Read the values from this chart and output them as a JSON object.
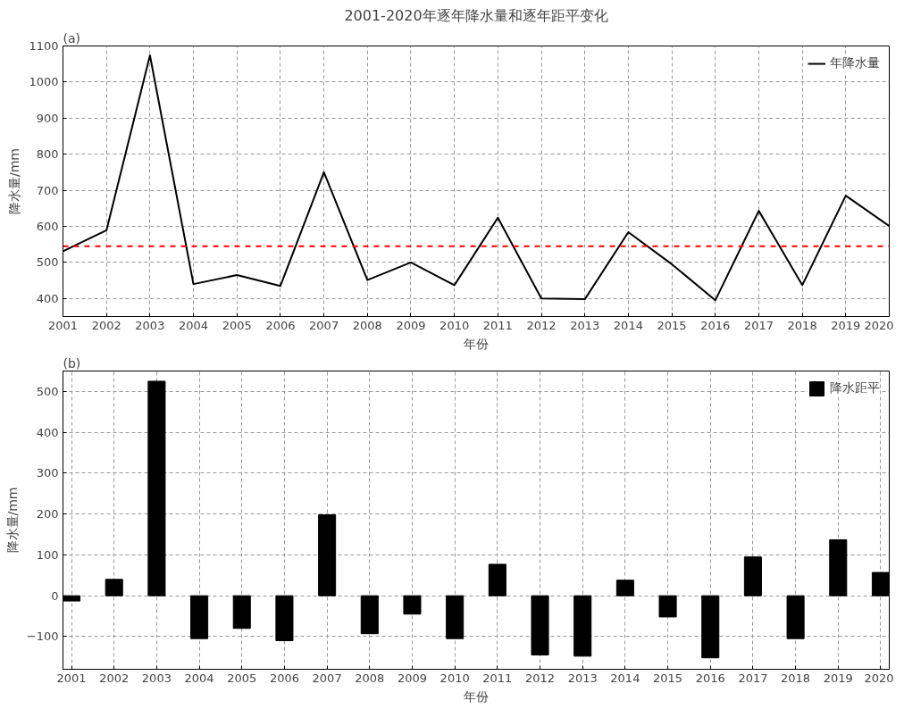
{
  "chart_data": [
    {
      "type": "line",
      "title": "2001-2020年逐年降水量和逐年距平变化",
      "xlabel": "年份",
      "ylabel": "降水量/mm",
      "annotations": [
        "(a)"
      ],
      "x": [
        2001,
        2002,
        2003,
        2004,
        2005,
        2006,
        2007,
        2008,
        2009,
        2010,
        2011,
        2012,
        2013,
        2014,
        2015,
        2016,
        2017,
        2018,
        2019,
        2020
      ],
      "series": [
        {
          "name": "年降水量",
          "color": "#000000",
          "values": [
            531,
            589,
            1074,
            440,
            465,
            435,
            750,
            451,
            500,
            437,
            624,
            400,
            398,
            584,
            495,
            395,
            643,
            437,
            685,
            601
          ]
        }
      ],
      "xlim": [
        2001,
        2020
      ],
      "xticks": [
        2001,
        2002,
        2003,
        2004,
        2005,
        2006,
        2007,
        2008,
        2009,
        2010,
        2011,
        2012,
        2013,
        2014,
        2015,
        2016,
        2017,
        2018,
        2019,
        2020
      ],
      "ylim": [
        350,
        1100
      ],
      "yticks": [
        400,
        500,
        600,
        700,
        800,
        900,
        1000,
        1100
      ],
      "ref_lines": [
        {
          "axis": "y",
          "value": 545,
          "color": "#ff0000",
          "line_style": "dashed"
        }
      ],
      "grid": true,
      "legend": "top right",
      "line_style": "solid"
    },
    {
      "type": "bar",
      "xlabel": "年份",
      "ylabel": "降水量/mm",
      "annotations": [
        "(b)"
      ],
      "categories": [
        "2001",
        "2002",
        "2003",
        "2004",
        "2005",
        "2006",
        "2007",
        "2008",
        "2009",
        "2010",
        "2011",
        "2012",
        "2013",
        "2014",
        "2015",
        "2016",
        "2017",
        "2018",
        "2019",
        "2020"
      ],
      "series": [
        {
          "name": "降水距平",
          "color": "#000000",
          "values": [
            -13,
            40,
            525,
            -105,
            -80,
            -110,
            198,
            -93,
            -45,
            -105,
            77,
            -145,
            -148,
            38,
            -52,
            -152,
            95,
            -105,
            137,
            57
          ]
        }
      ],
      "ylim": [
        -180,
        550
      ],
      "yticks": [
        -100,
        0,
        100,
        200,
        300,
        400,
        500
      ],
      "grid": true,
      "legend": "top right"
    }
  ]
}
